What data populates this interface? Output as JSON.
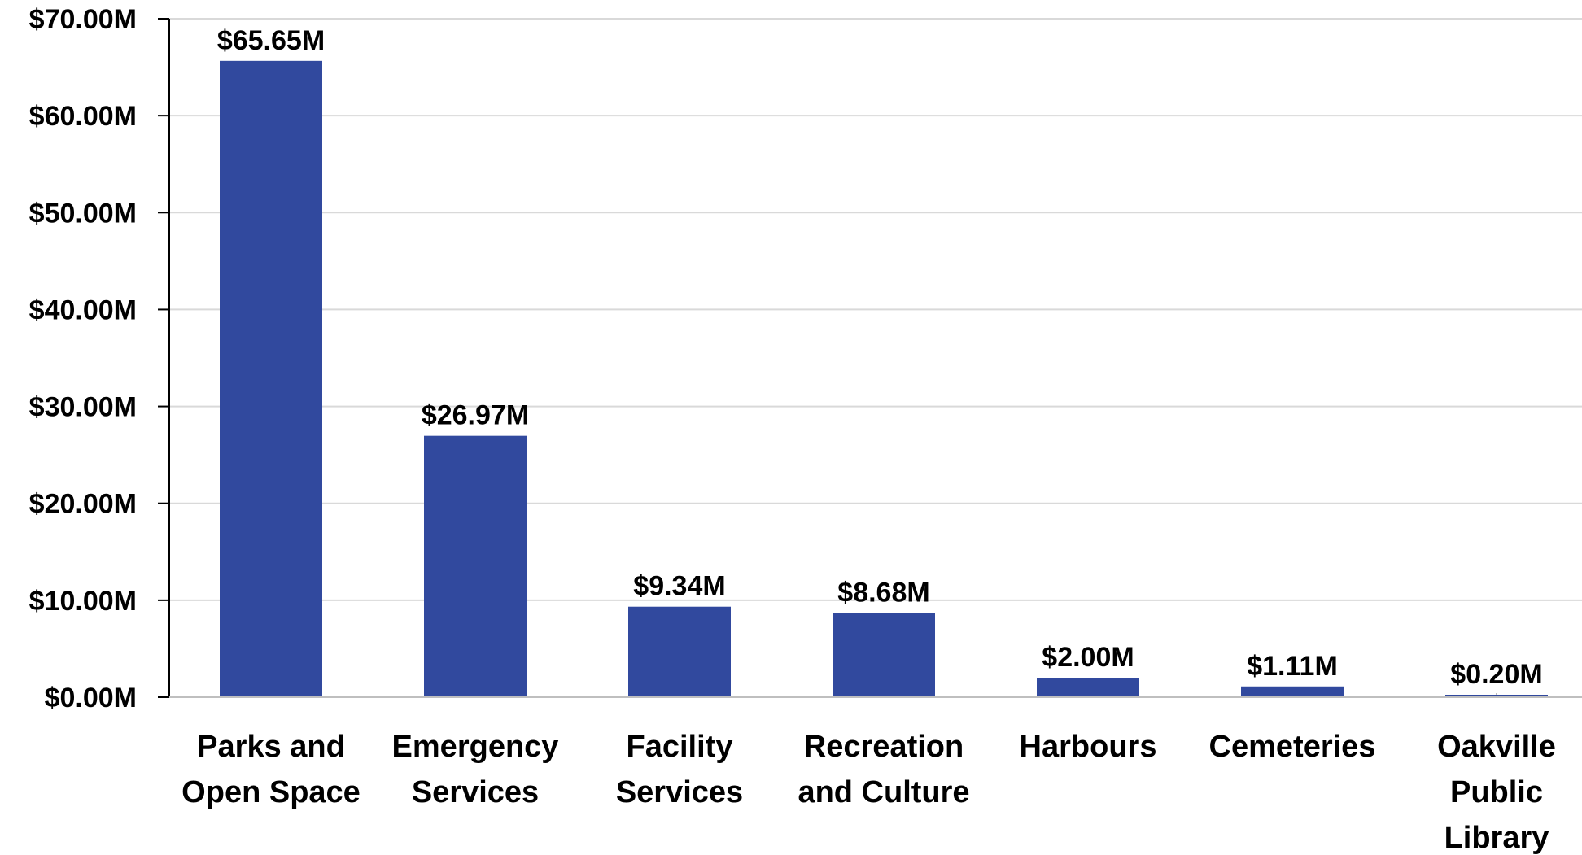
{
  "chart_data": {
    "type": "bar",
    "categories": [
      [
        "Parks and",
        "Open Space"
      ],
      [
        "Emergency",
        "Services"
      ],
      [
        "Facility",
        "Services"
      ],
      [
        "Recreation",
        "and Culture"
      ],
      [
        "Harbours"
      ],
      [
        "Cemeteries"
      ],
      [
        "Oakville",
        "Public",
        "Library"
      ]
    ],
    "values": [
      65.65,
      26.97,
      9.34,
      8.68,
      2.0,
      1.11,
      0.2
    ],
    "data_labels": [
      "$65.65M",
      "$26.97M",
      "$9.34M",
      "$8.68M",
      "$2.00M",
      "$1.11M",
      "$0.20M"
    ],
    "y_ticks": [
      0,
      10,
      20,
      30,
      40,
      50,
      60,
      70
    ],
    "y_tick_labels": [
      "$0.00M",
      "$10.00M",
      "$20.00M",
      "$30.00M",
      "$40.00M",
      "$50.00M",
      "$60.00M",
      "$70.00M"
    ],
    "ylim": [
      0,
      70
    ],
    "title": "",
    "xlabel": "",
    "ylabel": "",
    "grid": true,
    "legend": "none",
    "bar_color": "#31499E",
    "grid_color": "#D9D9D9",
    "axis_color": "#000000"
  }
}
